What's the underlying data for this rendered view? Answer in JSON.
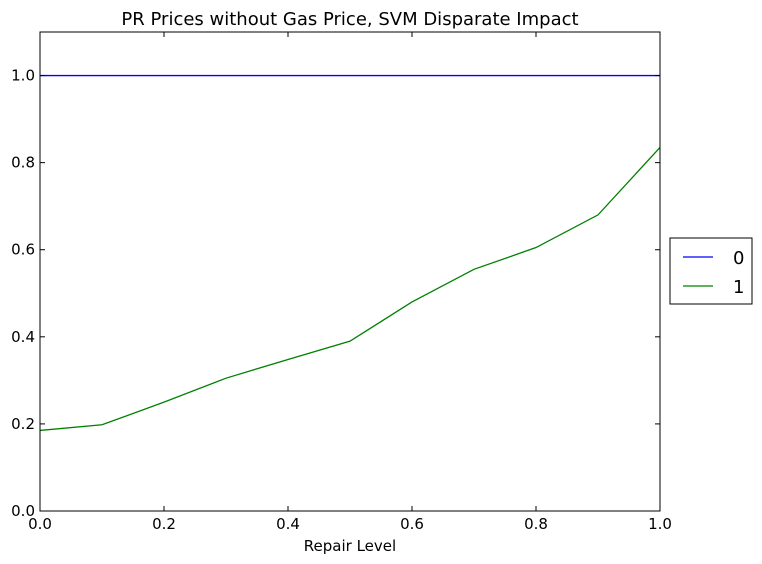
{
  "chart_data": {
    "type": "line",
    "title": "PR Prices without Gas Price, SVM Disparate Impact",
    "xlabel": "Repair Level",
    "ylabel": "",
    "xlim": [
      0.0,
      1.0
    ],
    "ylim": [
      0.0,
      1.1
    ],
    "x_ticks": [
      "0.0",
      "0.2",
      "0.4",
      "0.6",
      "0.8",
      "1.0"
    ],
    "y_ticks": [
      "0.0",
      "0.2",
      "0.4",
      "0.6",
      "0.8",
      "1.0"
    ],
    "grid": false,
    "legend_position": "right, outside plot area",
    "x": [
      0.0,
      0.1,
      0.2,
      0.3,
      0.4,
      0.5,
      0.6,
      0.7,
      0.8,
      0.9,
      1.0
    ],
    "series": [
      {
        "name": "0",
        "color": "#0000ff",
        "values": [
          1.0,
          1.0,
          1.0,
          1.0,
          1.0,
          1.0,
          1.0,
          1.0,
          1.0,
          1.0,
          1.0
        ]
      },
      {
        "name": "1",
        "color": "#008000",
        "values": [
          0.185,
          0.198,
          0.25,
          0.305,
          0.348,
          0.39,
          0.48,
          0.555,
          0.605,
          0.68,
          0.835
        ]
      }
    ]
  }
}
